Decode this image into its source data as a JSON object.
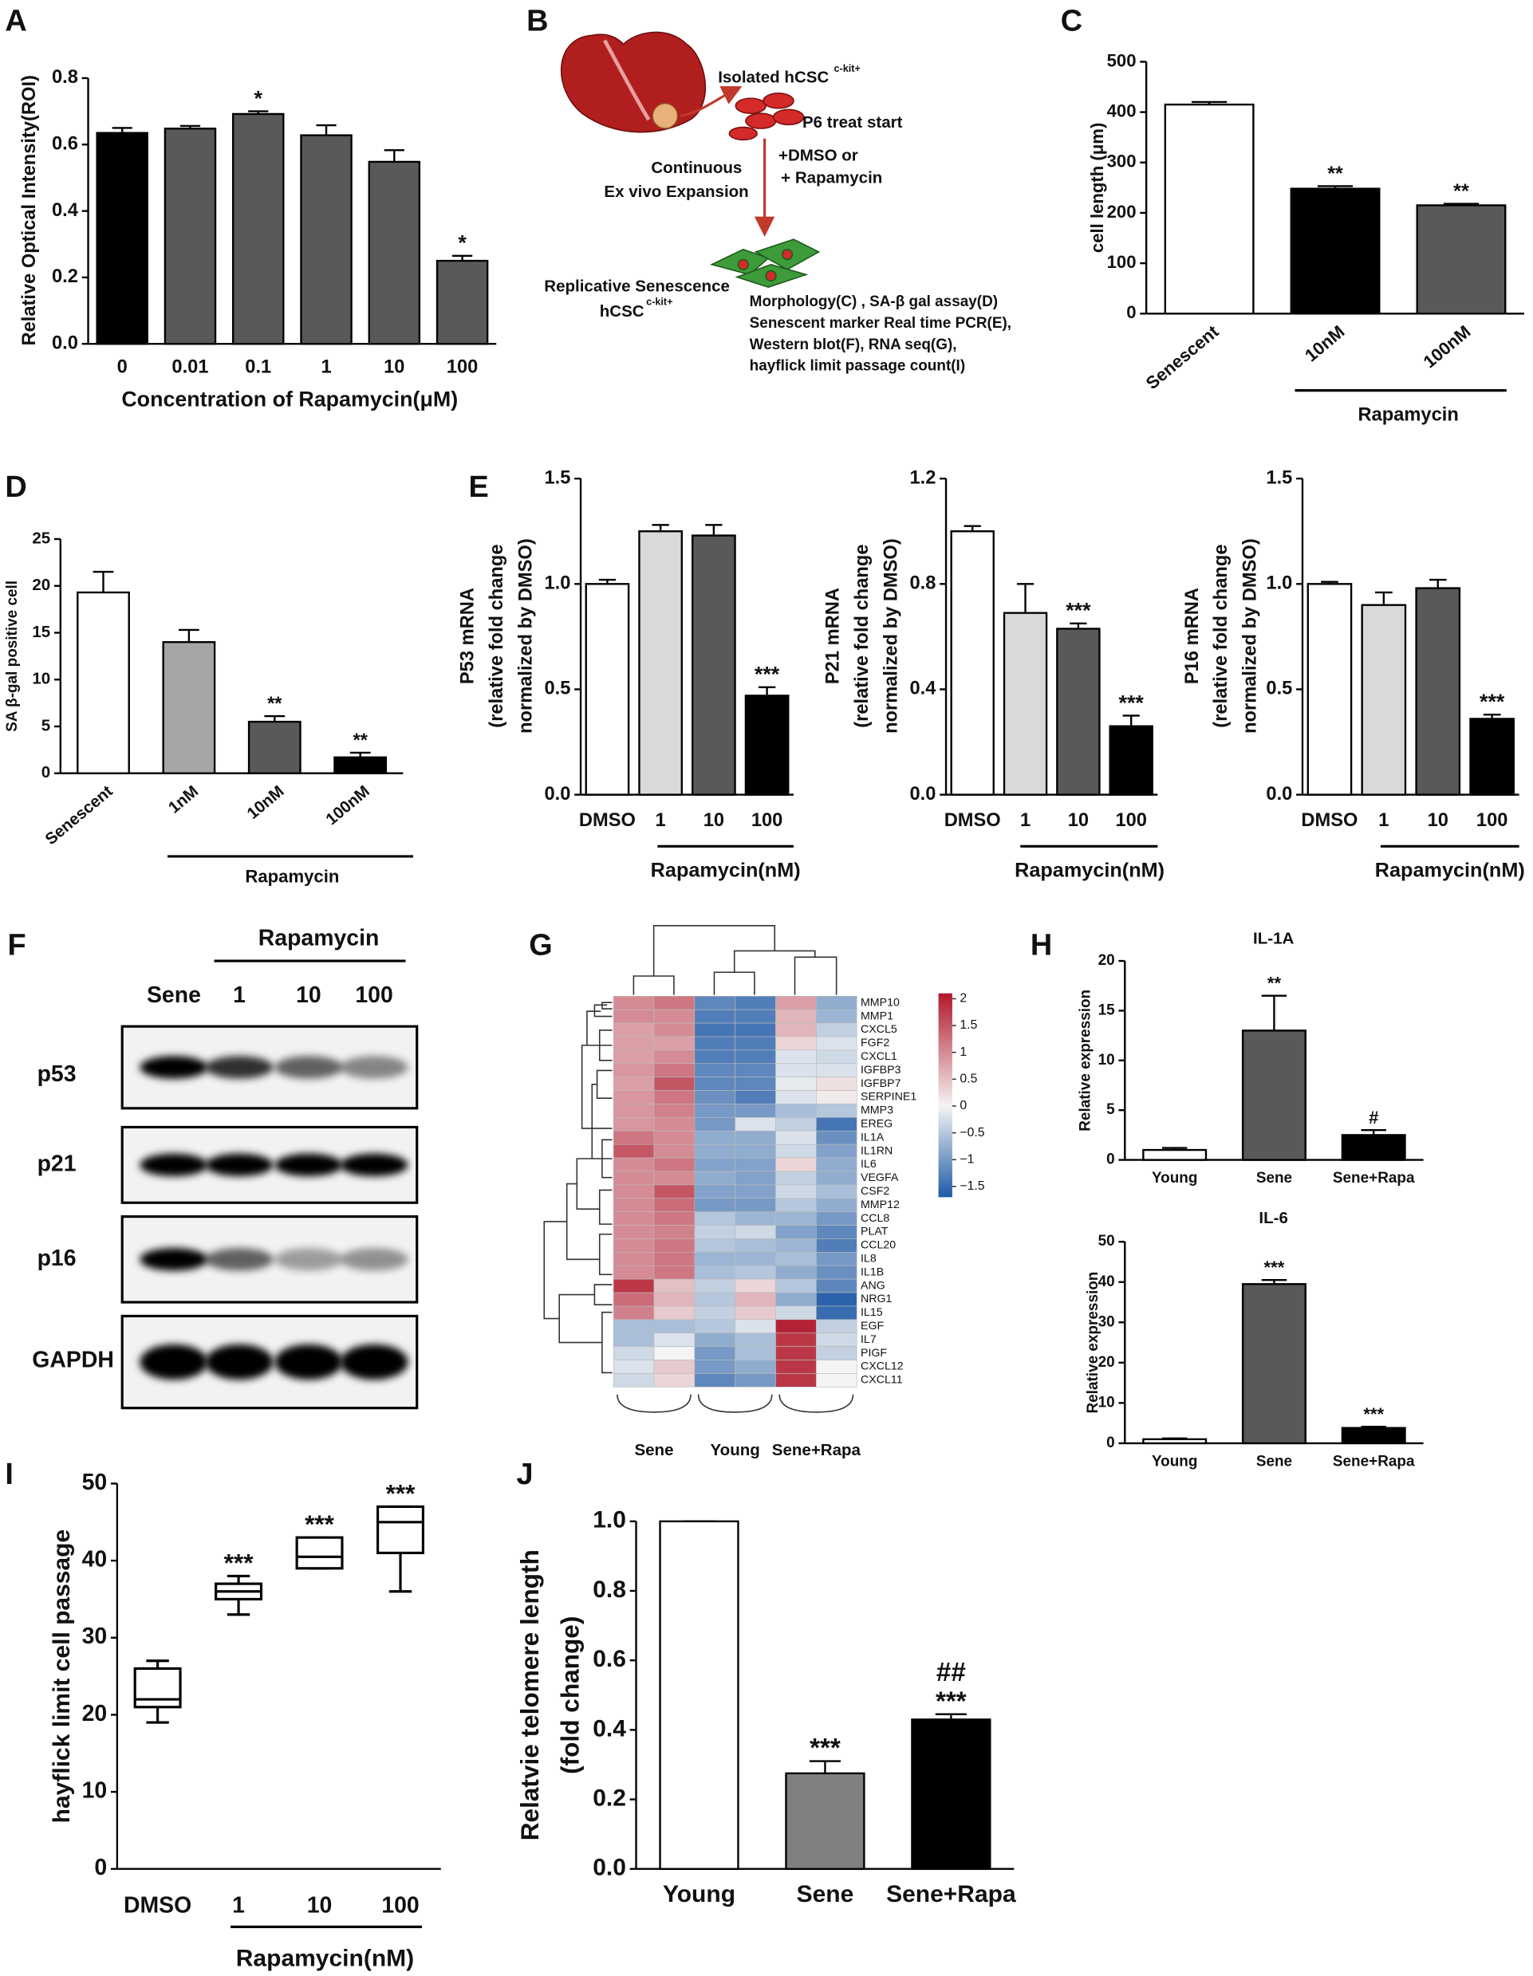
{
  "chart_data": [
    {
      "type": "bar",
      "panel": "A",
      "ylabel": "Relative Optical Intensity(ROI)",
      "xlabel": "Concentration of Rapamycin(μM)",
      "categories": [
        "0",
        "0.01",
        "0.1",
        "1",
        "10",
        "100"
      ],
      "values": [
        0.635,
        0.648,
        0.692,
        0.628,
        0.548,
        0.25
      ],
      "errors": [
        0.015,
        0.008,
        0.008,
        0.03,
        0.035,
        0.015
      ],
      "colors": [
        "#000000",
        "#595959",
        "#595959",
        "#595959",
        "#595959",
        "#595959"
      ],
      "significance": [
        null,
        null,
        "*",
        null,
        null,
        "*"
      ],
      "ylim": [
        0,
        0.8
      ],
      "yticks": [
        {
          "value": 0,
          "label": "0.0"
        },
        {
          "value": 0.2,
          "label": "0.2"
        },
        {
          "value": 0.4,
          "label": "0.4"
        },
        {
          "value": 0.6,
          "label": "0.6"
        },
        {
          "value": 0.8,
          "label": "0.8"
        }
      ]
    },
    {
      "type": "bar",
      "panel": "C",
      "ylabel": "cell length (μm)",
      "group_label": "Rapamycin",
      "categories": [
        "Senescent",
        "10nM",
        "100nM"
      ],
      "values": [
        415,
        248,
        215
      ],
      "errors": [
        5,
        5,
        3
      ],
      "colors": [
        "#ffffff",
        "#000000",
        "#595959"
      ],
      "significance": [
        null,
        "**",
        "**"
      ],
      "ylim": [
        0,
        500
      ],
      "yticks": [
        0,
        100,
        200,
        300,
        400,
        500
      ]
    },
    {
      "type": "bar",
      "panel": "D",
      "ylabel": "SA β-gal positive cell",
      "group_label": "Rapamycin",
      "categories": [
        "Senescent",
        "1nM",
        "10nM",
        "100nM"
      ],
      "values": [
        19.3,
        14,
        5.5,
        1.7
      ],
      "errors": [
        2.2,
        1.3,
        0.6,
        0.5
      ],
      "colors": [
        "#ffffff",
        "#a6a6a6",
        "#595959",
        "#000000"
      ],
      "significance": [
        null,
        null,
        "**",
        "**"
      ],
      "ylim": [
        0,
        25
      ],
      "yticks": [
        0,
        5,
        10,
        15,
        20,
        25
      ]
    },
    {
      "type": "bar",
      "panel": "E",
      "ylabel": [
        "P53 mRNA",
        "(relative fold change",
        "normalized by DMSO)"
      ],
      "group_label": "Rapamycin(nM)",
      "categories": [
        "DMSO",
        "1",
        "10",
        "100"
      ],
      "values": [
        1.0,
        1.25,
        1.23,
        0.47
      ],
      "errors": [
        0.02,
        0.03,
        0.05,
        0.04
      ],
      "colors": [
        "#ffffff",
        "#d9d9d9",
        "#595959",
        "#000000"
      ],
      "significance": [
        null,
        null,
        null,
        "***"
      ],
      "ylim": [
        0,
        1.5
      ],
      "yticks": [
        {
          "value": 0,
          "label": "0.0"
        },
        {
          "value": 0.5,
          "label": "0.5"
        },
        {
          "value": 1,
          "label": "1.0"
        },
        {
          "value": 1.5,
          "label": "1.5"
        }
      ]
    },
    {
      "type": "bar",
      "ylabel": [
        "P21 mRNA",
        "(relative fold change",
        "normalized by DMSO)"
      ],
      "group_label": "Rapamycin(nM)",
      "categories": [
        "DMSO",
        "1",
        "10",
        "100"
      ],
      "values": [
        1.0,
        0.69,
        0.63,
        0.26
      ],
      "errors": [
        0.02,
        0.11,
        0.02,
        0.04
      ],
      "colors": [
        "#ffffff",
        "#d9d9d9",
        "#595959",
        "#000000"
      ],
      "significance": [
        null,
        null,
        "***",
        "***"
      ],
      "ylim": [
        0,
        1.2
      ],
      "yticks": [
        {
          "value": 0,
          "label": "0.0"
        },
        {
          "value": 0.4,
          "label": "0.4"
        },
        {
          "value": 0.8,
          "label": "0.8"
        },
        {
          "value": 1.2,
          "label": "1.2"
        }
      ]
    },
    {
      "type": "bar",
      "ylabel": [
        "P16 mRNA",
        "(relative fold change",
        "normalized by DMSO)"
      ],
      "group_label": "Rapamycin(nM)",
      "categories": [
        "DMSO",
        "1",
        "10",
        "100"
      ],
      "values": [
        1.0,
        0.9,
        0.98,
        0.36
      ],
      "errors": [
        0.01,
        0.06,
        0.04,
        0.02
      ],
      "colors": [
        "#ffffff",
        "#d9d9d9",
        "#595959",
        "#000000"
      ],
      "significance": [
        null,
        null,
        null,
        "***"
      ],
      "ylim": [
        0,
        1.5
      ],
      "yticks": [
        {
          "value": 0,
          "label": "0.0"
        },
        {
          "value": 0.5,
          "label": "0.5"
        },
        {
          "value": 1,
          "label": "1.0"
        },
        {
          "value": 1.5,
          "label": "1.5"
        }
      ]
    },
    {
      "type": "heatmap",
      "panel": "G",
      "rows": [
        "MMP10",
        "MMP1",
        "CXCL5",
        "FGF2",
        "CXCL1",
        "IGFBP3",
        "IGFBP7",
        "SERPINE1",
        "MMP3",
        "EREG",
        "IL1A",
        "IL1RN",
        "IL6",
        "VEGFA",
        "CSF2",
        "MMP12",
        "CCL8",
        "PLAT",
        "CCL20",
        "IL8",
        "IL1B",
        "ANG",
        "NRG1",
        "IL15",
        "EGF",
        "IL7",
        "PIGF",
        "CXCL12",
        "CXCL11"
      ],
      "column_groups": [
        "Sene",
        "Young",
        "Sene+Rapa"
      ],
      "values": [
        [
          1.0,
          1.2,
          -1.2,
          -1.3,
          0.8,
          -0.8
        ],
        [
          1.0,
          1.0,
          -1.3,
          -1.3,
          0.6,
          -0.7
        ],
        [
          0.8,
          1.0,
          -1.4,
          -1.4,
          0.6,
          -0.4
        ],
        [
          0.8,
          0.8,
          -1.3,
          -1.3,
          0.3,
          -0.2
        ],
        [
          0.8,
          1.0,
          -1.3,
          -1.3,
          -0.2,
          -0.3
        ],
        [
          0.9,
          1.2,
          -1.2,
          -1.2,
          -0.2,
          -0.2
        ],
        [
          0.8,
          1.5,
          -1.2,
          -1.2,
          -0.1,
          0.2
        ],
        [
          0.9,
          1.2,
          -1.1,
          -1.3,
          -0.2,
          0.1
        ],
        [
          0.9,
          1.1,
          -1.0,
          -1.0,
          -0.6,
          -0.5
        ],
        [
          0.9,
          1.0,
          -1.0,
          -0.2,
          -0.4,
          -1.4
        ],
        [
          1.2,
          1.0,
          -0.8,
          -0.8,
          -0.2,
          -1.1
        ],
        [
          1.5,
          1.0,
          -0.8,
          -0.8,
          -0.3,
          -0.9
        ],
        [
          1.0,
          1.2,
          -0.9,
          -0.9,
          0.3,
          -0.8
        ],
        [
          1.0,
          1.0,
          -0.8,
          -0.9,
          -0.4,
          -0.8
        ],
        [
          1.0,
          1.5,
          -0.9,
          -0.9,
          -0.3,
          -0.6
        ],
        [
          1.0,
          1.3,
          -1.0,
          -1.0,
          -0.5,
          -0.8
        ],
        [
          1.0,
          1.2,
          -0.5,
          -0.7,
          -0.7,
          -1.0
        ],
        [
          1.0,
          1.1,
          -0.4,
          -0.3,
          -0.9,
          -1.2
        ],
        [
          1.0,
          1.2,
          -0.5,
          -0.6,
          -0.7,
          -1.3
        ],
        [
          1.0,
          1.2,
          -0.7,
          -0.7,
          -0.6,
          -1.0
        ],
        [
          1.0,
          1.2,
          -0.6,
          -0.5,
          -0.8,
          -1.1
        ],
        [
          1.8,
          0.5,
          -0.4,
          0.3,
          -0.5,
          -1.2
        ],
        [
          1.3,
          0.6,
          -0.5,
          0.6,
          -0.8,
          -1.6
        ],
        [
          1.1,
          0.4,
          -0.4,
          0.4,
          -0.3,
          -1.5
        ],
        [
          -0.6,
          -0.6,
          -0.5,
          -0.2,
          2.0,
          -0.4
        ],
        [
          -0.6,
          -0.2,
          -0.8,
          -0.6,
          1.8,
          -0.3
        ],
        [
          -0.3,
          0.0,
          -1.0,
          -0.6,
          1.8,
          -0.4
        ],
        [
          -0.2,
          0.4,
          -1.0,
          -0.8,
          1.8,
          0.0
        ],
        [
          -0.3,
          0.3,
          -1.2,
          -1.0,
          1.8,
          0.0
        ]
      ],
      "colormap": [
        "#1f5aa6",
        "#f4f4f4",
        "#b2182b"
      ],
      "clim": [
        -1.7,
        2.1
      ],
      "cticks": [
        2,
        1.5,
        1,
        0.5,
        0,
        {
          "value": -0.5,
          "label": "−0.5"
        },
        {
          "value": -1,
          "label": "−1"
        },
        {
          "value": -1.5,
          "label": "−1.5"
        }
      ]
    },
    {
      "type": "bar",
      "panel": "H",
      "title": "IL-1A",
      "ylabel": "Relative expression",
      "categories": [
        "Young",
        "Sene",
        "Sene+Rapa"
      ],
      "values": [
        1,
        13,
        2.5
      ],
      "errors": [
        0.2,
        3.5,
        0.5
      ],
      "colors": [
        "#ffffff",
        "#595959",
        "#000000"
      ],
      "significance": [
        null,
        "**",
        "#"
      ],
      "ylim": [
        0,
        20
      ],
      "yticks": [
        0,
        5,
        10,
        15,
        20
      ]
    },
    {
      "type": "bar",
      "title": "IL-6",
      "ylabel": "Relative expression",
      "categories": [
        "Young",
        "Sene",
        "Sene+Rapa"
      ],
      "values": [
        1,
        39.5,
        3.8
      ],
      "errors": [
        0.2,
        1,
        0.3
      ],
      "colors": [
        "#ffffff",
        "#595959",
        "#000000"
      ],
      "significance": [
        null,
        "***",
        "***"
      ],
      "ylim": [
        0,
        50
      ],
      "yticks": [
        0,
        10,
        20,
        30,
        40,
        50
      ]
    },
    {
      "type": "box",
      "panel": "I",
      "ylabel": "hayflick limit cell passage",
      "group_label": "Rapamycin(nM)",
      "categories": [
        "DMSO",
        "1",
        "10",
        "100"
      ],
      "boxes": [
        {
          "min": 19,
          "q1": 21,
          "median": 22,
          "q3": 26,
          "max": 27
        },
        {
          "min": 33,
          "q1": 35,
          "median": 36,
          "q3": 37,
          "max": 38
        },
        {
          "min": 39,
          "q1": 39,
          "median": 40.5,
          "q3": 43,
          "max": 43
        },
        {
          "min": 36,
          "q1": 41,
          "median": 45,
          "q3": 47,
          "max": 47
        }
      ],
      "significance": [
        null,
        "***",
        "***",
        "***"
      ],
      "ylim": [
        0,
        50
      ],
      "yticks": [
        0,
        10,
        20,
        30,
        40,
        50
      ]
    },
    {
      "type": "bar",
      "panel": "J",
      "ylabel": [
        "Relatvie telomere length",
        "(fold change)"
      ],
      "categories": [
        "Young",
        "Sene",
        "Sene+Rapa"
      ],
      "values": [
        1.0,
        0.275,
        0.43
      ],
      "errors": [
        0,
        0.035,
        0.015
      ],
      "colors": [
        "#ffffff",
        "#808080",
        "#000000"
      ],
      "significance": [
        null,
        [
          "***"
        ],
        [
          "##",
          "***"
        ]
      ],
      "ylim": [
        0,
        1.0
      ],
      "yticks": [
        {
          "value": 0,
          "label": "0.0"
        },
        {
          "value": 0.2,
          "label": "0.2"
        },
        {
          "value": 0.4,
          "label": "0.4"
        },
        {
          "value": 0.6,
          "label": "0.6"
        },
        {
          "value": 0.8,
          "label": "0.8"
        },
        {
          "value": 1.0,
          "label": "1.0"
        }
      ]
    }
  ],
  "diagram_b": {
    "panel": "B",
    "isolated": "Isolated hCSC",
    "isolated_sup": "c-kit+",
    "p6": "P6 treat start",
    "treat1": "+DMSO or",
    "treat2": "+ Rapamycin",
    "continuous1": "Continuous",
    "continuous2": "Ex vivo Expansion",
    "senescence1": "Replicative Senescence",
    "senescence2": "hCSC",
    "senescence2_sup": "c-kit+",
    "assays": [
      "Morphology(C) , SA-β gal assay(D)",
      "Senescent marker Real time PCR(E),",
      "Western blot(F), RNA seq(G),",
      "hayflick limit passage count(I)"
    ]
  },
  "western_blot": {
    "panel": "F",
    "group_label": "Rapamycin",
    "lanes": [
      "Sene",
      "1",
      "10",
      "100"
    ],
    "rows": [
      "p53",
      "p21",
      "p16",
      "GAPDH"
    ]
  }
}
